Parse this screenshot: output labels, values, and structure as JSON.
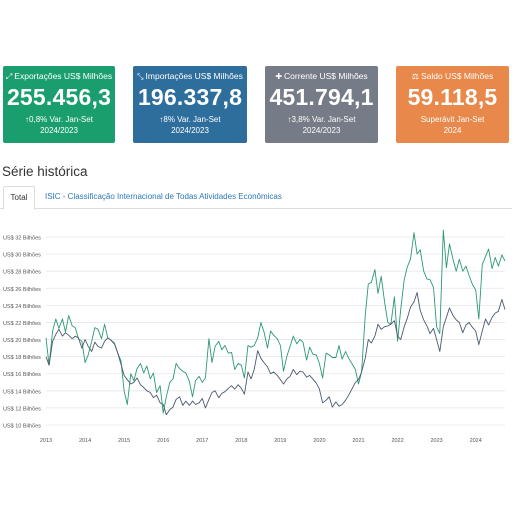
{
  "cards": [
    {
      "icon": "expand-arrows-icon",
      "glyph": "⤢",
      "title": "Exportações US$ Milhões",
      "value": "255.456,3",
      "variation": "0,8% Var. Jan-Set",
      "period": "2024/2023",
      "color": "#1a9e6e",
      "arrow": "↑"
    },
    {
      "icon": "compress-arrows-icon",
      "glyph": "⤡",
      "title": "Importações US$ Milhões",
      "value": "196.337,8",
      "variation": "8% Var. Jan-Set",
      "period": "2024/2023",
      "color": "#2e6e9c",
      "arrow": "↑"
    },
    {
      "icon": "plus-icon",
      "glyph": "✚",
      "title": "Corrente US$ Milhões",
      "value": "451.794,1",
      "variation": "3,8% Var. Jan-Set",
      "period": "2024/2023",
      "color": "#767c87",
      "arrow": "↑"
    },
    {
      "icon": "scale-icon",
      "glyph": "⚖",
      "title": "Saldo US$ Milhões",
      "value": "59.118,5",
      "variation": "Superávit Jan-Set",
      "period": "2024",
      "color": "#e8884a",
      "arrow": ""
    }
  ],
  "section_title": "Série histórica",
  "tabs": {
    "active": "Total",
    "link": "ISIC - Classificação Internacional de Todas Atividades Econômicas"
  },
  "chart_data": {
    "type": "line",
    "ylabels": [
      "US$ 32 Bilhões",
      "US$ 30 Bilhões",
      "US$ 28 Bilhões",
      "US$ 26 Bilhões",
      "US$ 24 Bilhões",
      "US$ 22 Bilhões",
      "US$ 20 Bilhões",
      "US$ 18 Bilhões",
      "US$ 16 Bilhões",
      "US$ 14 Bilhões",
      "US$ 12 Bilhões",
      "US$ 10 Bilhões"
    ],
    "ylim": [
      10,
      32
    ],
    "xlabels": [
      "2013",
      "2014",
      "2015",
      "2016",
      "2017",
      "2018",
      "2019",
      "2020",
      "2021",
      "2022",
      "2023",
      "2024"
    ],
    "xlim": [
      2013,
      2024.75
    ],
    "series": [
      {
        "color": "#2b9a72",
        "values": [
          [
            2013.0,
            20.2
          ],
          [
            2013.08,
            17.0
          ],
          [
            2013.17,
            21.0
          ],
          [
            2013.25,
            22.4
          ],
          [
            2013.33,
            21.3
          ],
          [
            2013.42,
            22.4
          ],
          [
            2013.5,
            20.9
          ],
          [
            2013.58,
            22.8
          ],
          [
            2013.67,
            21.6
          ],
          [
            2013.75,
            21.4
          ],
          [
            2013.83,
            20.1
          ],
          [
            2013.92,
            19.8
          ],
          [
            2014.0,
            17.3
          ],
          [
            2014.08,
            18.2
          ],
          [
            2014.17,
            19.8
          ],
          [
            2014.25,
            21.4
          ],
          [
            2014.33,
            21.2
          ],
          [
            2014.42,
            20.1
          ],
          [
            2014.5,
            21.8
          ],
          [
            2014.58,
            20.2
          ],
          [
            2014.67,
            19.9
          ],
          [
            2014.75,
            19.6
          ],
          [
            2014.83,
            18.5
          ],
          [
            2014.92,
            17.5
          ],
          [
            2015.0,
            14.0
          ],
          [
            2015.08,
            12.4
          ],
          [
            2015.17,
            16.0
          ],
          [
            2015.25,
            15.2
          ],
          [
            2015.33,
            16.6
          ],
          [
            2015.42,
            17.2
          ],
          [
            2015.5,
            16.1
          ],
          [
            2015.58,
            16.9
          ],
          [
            2015.67,
            15.4
          ],
          [
            2015.75,
            16.1
          ],
          [
            2015.83,
            13.8
          ],
          [
            2015.92,
            14.6
          ],
          [
            2016.0,
            11.4
          ],
          [
            2016.08,
            13.3
          ],
          [
            2016.17,
            15.0
          ],
          [
            2016.25,
            15.4
          ],
          [
            2016.33,
            17.2
          ],
          [
            2016.42,
            16.6
          ],
          [
            2016.5,
            16.3
          ],
          [
            2016.58,
            16.1
          ],
          [
            2016.67,
            15.1
          ],
          [
            2016.75,
            13.3
          ],
          [
            2016.83,
            15.2
          ],
          [
            2016.92,
            15.7
          ],
          [
            2017.0,
            15.0
          ],
          [
            2017.08,
            15.5
          ],
          [
            2017.17,
            20.1
          ],
          [
            2017.25,
            17.3
          ],
          [
            2017.33,
            19.2
          ],
          [
            2017.42,
            19.8
          ],
          [
            2017.5,
            18.8
          ],
          [
            2017.58,
            19.3
          ],
          [
            2017.67,
            18.4
          ],
          [
            2017.75,
            18.5
          ],
          [
            2017.83,
            16.5
          ],
          [
            2017.92,
            17.2
          ],
          [
            2018.0,
            17.0
          ],
          [
            2018.08,
            15.5
          ],
          [
            2018.17,
            19.3
          ],
          [
            2018.25,
            19.1
          ],
          [
            2018.33,
            19.3
          ],
          [
            2018.42,
            20.2
          ],
          [
            2018.5,
            22.0
          ],
          [
            2018.58,
            20.9
          ],
          [
            2018.67,
            19.0
          ],
          [
            2018.75,
            21.0
          ],
          [
            2018.83,
            20.5
          ],
          [
            2018.92,
            20.1
          ],
          [
            2019.0,
            19.3
          ],
          [
            2019.08,
            16.3
          ],
          [
            2019.17,
            18.1
          ],
          [
            2019.25,
            19.2
          ],
          [
            2019.33,
            20.4
          ],
          [
            2019.42,
            19.5
          ],
          [
            2019.5,
            20.0
          ],
          [
            2019.58,
            19.7
          ],
          [
            2019.67,
            17.6
          ],
          [
            2019.75,
            19.1
          ],
          [
            2019.83,
            18.3
          ],
          [
            2019.92,
            18.2
          ],
          [
            2020.0,
            17.2
          ],
          [
            2020.08,
            15.5
          ],
          [
            2020.17,
            18.4
          ],
          [
            2020.25,
            18.2
          ],
          [
            2020.33,
            17.9
          ],
          [
            2020.42,
            17.9
          ],
          [
            2020.5,
            19.3
          ],
          [
            2020.58,
            17.7
          ],
          [
            2020.67,
            18.6
          ],
          [
            2020.75,
            17.8
          ],
          [
            2020.83,
            17.2
          ],
          [
            2020.92,
            16.5
          ],
          [
            2021.0,
            14.8
          ],
          [
            2021.08,
            16.2
          ],
          [
            2021.17,
            22.8
          ],
          [
            2021.25,
            26.5
          ],
          [
            2021.33,
            26.7
          ],
          [
            2021.42,
            28.2
          ],
          [
            2021.5,
            25.4
          ],
          [
            2021.58,
            27.4
          ],
          [
            2021.67,
            24.3
          ],
          [
            2021.75,
            22.0
          ],
          [
            2021.83,
            21.8
          ],
          [
            2021.92,
            25.0
          ],
          [
            2022.0,
            19.8
          ],
          [
            2022.08,
            23.5
          ],
          [
            2022.17,
            27.0
          ],
          [
            2022.25,
            28.5
          ],
          [
            2022.33,
            29.4
          ],
          [
            2022.42,
            32.5
          ],
          [
            2022.5,
            30.0
          ],
          [
            2022.58,
            30.5
          ],
          [
            2022.67,
            28.0
          ],
          [
            2022.75,
            27.1
          ],
          [
            2022.83,
            27.0
          ],
          [
            2022.92,
            26.1
          ],
          [
            2023.0,
            21.5
          ],
          [
            2023.08,
            20.7
          ],
          [
            2023.17,
            32.8
          ],
          [
            2023.25,
            28.4
          ],
          [
            2023.33,
            31.2
          ],
          [
            2023.42,
            29.4
          ],
          [
            2023.5,
            28.0
          ],
          [
            2023.58,
            29.4
          ],
          [
            2023.67,
            28.0
          ],
          [
            2023.75,
            28.6
          ],
          [
            2023.83,
            27.5
          ],
          [
            2023.92,
            26.4
          ],
          [
            2024.0,
            25.8
          ],
          [
            2024.08,
            22.4
          ],
          [
            2024.17,
            28.8
          ],
          [
            2024.25,
            29.7
          ],
          [
            2024.33,
            30.6
          ],
          [
            2024.42,
            28.3
          ],
          [
            2024.5,
            29.6
          ],
          [
            2024.58,
            28.6
          ],
          [
            2024.67,
            29.9
          ],
          [
            2024.75,
            29.2
          ]
        ]
      },
      {
        "color": "#4a5a70",
        "values": [
          [
            2013.0,
            18.0
          ],
          [
            2013.08,
            17.0
          ],
          [
            2013.17,
            19.8
          ],
          [
            2013.25,
            20.6
          ],
          [
            2013.33,
            21.2
          ],
          [
            2013.42,
            20.4
          ],
          [
            2013.5,
            20.8
          ],
          [
            2013.58,
            20.5
          ],
          [
            2013.67,
            20.1
          ],
          [
            2013.75,
            20.4
          ],
          [
            2013.83,
            20.2
          ],
          [
            2013.92,
            19.0
          ],
          [
            2014.0,
            20.0
          ],
          [
            2014.08,
            19.2
          ],
          [
            2014.17,
            18.6
          ],
          [
            2014.25,
            19.7
          ],
          [
            2014.33,
            19.2
          ],
          [
            2014.42,
            19.0
          ],
          [
            2014.5,
            19.8
          ],
          [
            2014.58,
            20.2
          ],
          [
            2014.67,
            19.9
          ],
          [
            2014.75,
            19.5
          ],
          [
            2014.83,
            18.5
          ],
          [
            2014.92,
            17.1
          ],
          [
            2015.0,
            15.8
          ],
          [
            2015.08,
            15.3
          ],
          [
            2015.17,
            14.8
          ],
          [
            2015.25,
            15.0
          ],
          [
            2015.33,
            15.5
          ],
          [
            2015.42,
            14.7
          ],
          [
            2015.5,
            14.4
          ],
          [
            2015.58,
            14.0
          ],
          [
            2015.67,
            13.8
          ],
          [
            2015.75,
            13.2
          ],
          [
            2015.83,
            13.5
          ],
          [
            2015.92,
            12.6
          ],
          [
            2016.0,
            12.4
          ],
          [
            2016.08,
            11.2
          ],
          [
            2016.17,
            11.8
          ],
          [
            2016.25,
            12.1
          ],
          [
            2016.33,
            13.0
          ],
          [
            2016.42,
            13.3
          ],
          [
            2016.5,
            12.3
          ],
          [
            2016.58,
            12.8
          ],
          [
            2016.67,
            12.3
          ],
          [
            2016.75,
            12.8
          ],
          [
            2016.83,
            12.4
          ],
          [
            2016.92,
            12.6
          ],
          [
            2017.0,
            13.1
          ],
          [
            2017.08,
            12.0
          ],
          [
            2017.17,
            13.0
          ],
          [
            2017.25,
            13.8
          ],
          [
            2017.33,
            14.0
          ],
          [
            2017.42,
            13.2
          ],
          [
            2017.5,
            13.7
          ],
          [
            2017.58,
            13.9
          ],
          [
            2017.67,
            14.3
          ],
          [
            2017.75,
            14.6
          ],
          [
            2017.83,
            14.2
          ],
          [
            2017.92,
            14.7
          ],
          [
            2018.0,
            14.3
          ],
          [
            2018.08,
            13.6
          ],
          [
            2018.17,
            16.2
          ],
          [
            2018.25,
            15.4
          ],
          [
            2018.33,
            16.5
          ],
          [
            2018.42,
            18.7
          ],
          [
            2018.5,
            17.8
          ],
          [
            2018.58,
            17.3
          ],
          [
            2018.67,
            16.8
          ],
          [
            2018.75,
            16.0
          ],
          [
            2018.83,
            16.2
          ],
          [
            2018.92,
            15.8
          ],
          [
            2019.0,
            15.3
          ],
          [
            2019.08,
            14.8
          ],
          [
            2019.17,
            15.4
          ],
          [
            2019.25,
            15.7
          ],
          [
            2019.33,
            16.5
          ],
          [
            2019.42,
            15.9
          ],
          [
            2019.5,
            16.3
          ],
          [
            2019.58,
            16.2
          ],
          [
            2019.67,
            15.6
          ],
          [
            2019.75,
            15.8
          ],
          [
            2019.83,
            15.4
          ],
          [
            2019.92,
            14.9
          ],
          [
            2020.0,
            14.2
          ],
          [
            2020.08,
            12.6
          ],
          [
            2020.17,
            12.9
          ],
          [
            2020.25,
            13.3
          ],
          [
            2020.33,
            12.1
          ],
          [
            2020.42,
            12.7
          ],
          [
            2020.5,
            12.2
          ],
          [
            2020.58,
            12.4
          ],
          [
            2020.67,
            12.9
          ],
          [
            2020.75,
            13.5
          ],
          [
            2020.83,
            14.2
          ],
          [
            2020.92,
            15.0
          ],
          [
            2021.0,
            15.3
          ],
          [
            2021.08,
            16.2
          ],
          [
            2021.17,
            17.8
          ],
          [
            2021.25,
            20.0
          ],
          [
            2021.33,
            19.6
          ],
          [
            2021.42,
            20.4
          ],
          [
            2021.5,
            21.8
          ],
          [
            2021.58,
            21.2
          ],
          [
            2021.67,
            21.5
          ],
          [
            2021.75,
            21.6
          ],
          [
            2021.83,
            21.8
          ],
          [
            2021.92,
            22.2
          ],
          [
            2022.0,
            20.4
          ],
          [
            2022.08,
            20.0
          ],
          [
            2022.17,
            21.5
          ],
          [
            2022.25,
            22.5
          ],
          [
            2022.33,
            23.8
          ],
          [
            2022.42,
            24.4
          ],
          [
            2022.5,
            25.5
          ],
          [
            2022.58,
            23.4
          ],
          [
            2022.67,
            22.3
          ],
          [
            2022.75,
            21.6
          ],
          [
            2022.83,
            20.7
          ],
          [
            2022.92,
            21.3
          ],
          [
            2023.0,
            20.0
          ],
          [
            2023.08,
            18.6
          ],
          [
            2023.17,
            21.5
          ],
          [
            2023.25,
            22.6
          ],
          [
            2023.33,
            23.7
          ],
          [
            2023.42,
            22.8
          ],
          [
            2023.5,
            22.3
          ],
          [
            2023.58,
            22.0
          ],
          [
            2023.67,
            20.8
          ],
          [
            2023.75,
            21.7
          ],
          [
            2023.83,
            22.0
          ],
          [
            2023.92,
            21.4
          ],
          [
            2024.0,
            21.0
          ],
          [
            2024.08,
            19.4
          ],
          [
            2024.17,
            21.0
          ],
          [
            2024.25,
            22.4
          ],
          [
            2024.33,
            21.7
          ],
          [
            2024.42,
            22.6
          ],
          [
            2024.5,
            23.1
          ],
          [
            2024.58,
            23.3
          ],
          [
            2024.67,
            24.7
          ],
          [
            2024.75,
            23.5
          ]
        ]
      }
    ]
  }
}
